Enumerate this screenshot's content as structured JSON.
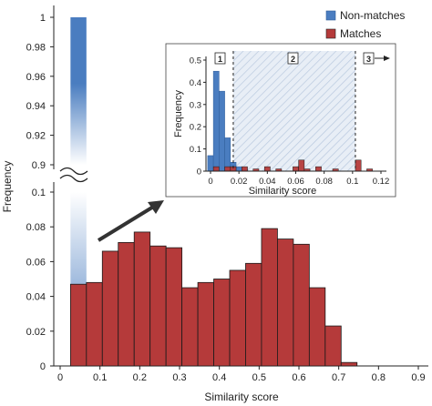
{
  "chart_data": [
    {
      "type": "bar",
      "xlabel": "Similarity score",
      "ylabel": "Frequency",
      "xlim": [
        0,
        0.9
      ],
      "xticks": [
        "0",
        "0.1",
        "0.2",
        "0.3",
        "0.4",
        "0.5",
        "0.6",
        "0.7",
        "0.8",
        "0.9"
      ],
      "yticks_lower": [
        "0",
        "0.02",
        "0.04",
        "0.06",
        "0.08",
        "0.1"
      ],
      "yticks_upper": [
        "0.9",
        "0.92",
        "0.94",
        "0.96",
        "0.98",
        "1"
      ],
      "y_axis_break": [
        0.1,
        0.9
      ],
      "bin_width": 0.04,
      "legend_position": "top-right",
      "series": [
        {
          "name": "Non-matches",
          "color": "#4a7dc0",
          "bins": [
            {
              "x0": 0.026,
              "x1": 0.066,
              "value": 1.0
            }
          ]
        },
        {
          "name": "Matches",
          "color": "#b53a3a",
          "bins": [
            {
              "x0": 0.026,
              "x1": 0.066,
              "value": 0.047
            },
            {
              "x0": 0.066,
              "x1": 0.106,
              "value": 0.048
            },
            {
              "x0": 0.106,
              "x1": 0.146,
              "value": 0.066
            },
            {
              "x0": 0.146,
              "x1": 0.186,
              "value": 0.071
            },
            {
              "x0": 0.186,
              "x1": 0.226,
              "value": 0.077
            },
            {
              "x0": 0.226,
              "x1": 0.266,
              "value": 0.069
            },
            {
              "x0": 0.266,
              "x1": 0.306,
              "value": 0.068
            },
            {
              "x0": 0.306,
              "x1": 0.346,
              "value": 0.045
            },
            {
              "x0": 0.346,
              "x1": 0.386,
              "value": 0.048
            },
            {
              "x0": 0.386,
              "x1": 0.426,
              "value": 0.05
            },
            {
              "x0": 0.426,
              "x1": 0.466,
              "value": 0.055
            },
            {
              "x0": 0.466,
              "x1": 0.506,
              "value": 0.059
            },
            {
              "x0": 0.506,
              "x1": 0.546,
              "value": 0.079
            },
            {
              "x0": 0.546,
              "x1": 0.586,
              "value": 0.073
            },
            {
              "x0": 0.586,
              "x1": 0.626,
              "value": 0.07
            },
            {
              "x0": 0.626,
              "x1": 0.666,
              "value": 0.045
            },
            {
              "x0": 0.666,
              "x1": 0.706,
              "value": 0.023
            },
            {
              "x0": 0.706,
              "x1": 0.746,
              "value": 0.002
            }
          ]
        }
      ]
    },
    {
      "type": "bar",
      "inset": true,
      "xlabel": "Similarity score",
      "ylabel": "Frequency",
      "xlim": [
        -0.005,
        0.125
      ],
      "ylim": [
        0,
        0.5
      ],
      "xticks": [
        "0",
        "0.02",
        "0.04",
        "0.06",
        "0.08",
        "0.1",
        "0.12"
      ],
      "yticks": [
        "0",
        "0.1",
        "0.2",
        "0.3",
        "0.4",
        "0.5"
      ],
      "thresholds": [
        0.016,
        0.102
      ],
      "region_labels": [
        "1",
        "2",
        "3"
      ],
      "series": [
        {
          "name": "Non-matches",
          "color": "#4a7dc0",
          "bins": [
            {
              "x0": -0.002,
              "x1": 0.002,
              "value": 0.07
            },
            {
              "x0": 0.002,
              "x1": 0.006,
              "value": 0.45
            },
            {
              "x0": 0.006,
              "x1": 0.01,
              "value": 0.36
            },
            {
              "x0": 0.01,
              "x1": 0.014,
              "value": 0.15
            },
            {
              "x0": 0.014,
              "x1": 0.018,
              "value": 0.04
            },
            {
              "x0": 0.018,
              "x1": 0.022,
              "value": 0.02
            },
            {
              "x0": 0.022,
              "x1": 0.026,
              "value": 0.01
            }
          ]
        },
        {
          "name": "Matches",
          "color": "#b53a3a",
          "bins": [
            {
              "x0": 0.002,
              "x1": 0.006,
              "value": 0.02
            },
            {
              "x0": 0.01,
              "x1": 0.014,
              "value": 0.02
            },
            {
              "x0": 0.014,
              "x1": 0.018,
              "value": 0.02
            },
            {
              "x0": 0.022,
              "x1": 0.026,
              "value": 0.02
            },
            {
              "x0": 0.03,
              "x1": 0.034,
              "value": 0.01
            },
            {
              "x0": 0.038,
              "x1": 0.042,
              "value": 0.02
            },
            {
              "x0": 0.046,
              "x1": 0.05,
              "value": 0.01
            },
            {
              "x0": 0.058,
              "x1": 0.062,
              "value": 0.02
            },
            {
              "x0": 0.062,
              "x1": 0.066,
              "value": 0.05
            },
            {
              "x0": 0.066,
              "x1": 0.07,
              "value": 0.01
            },
            {
              "x0": 0.074,
              "x1": 0.078,
              "value": 0.02
            },
            {
              "x0": 0.086,
              "x1": 0.09,
              "value": 0.01
            },
            {
              "x0": 0.102,
              "x1": 0.106,
              "value": 0.05
            },
            {
              "x0": 0.11,
              "x1": 0.114,
              "value": 0.01
            }
          ]
        }
      ]
    }
  ]
}
